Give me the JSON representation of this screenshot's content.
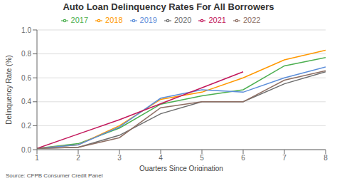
{
  "chart_data": {
    "type": "line",
    "title": "Auto Loan Delinquency Rates For All Borrowers",
    "x_label": "Quarters Since Origination",
    "y_label": "Delinquency Rate (%)",
    "annotations": [
      "Source: CFPB Consumer Credit Panel"
    ],
    "xlim": [
      1,
      8
    ],
    "xticks": [
      1,
      2,
      3,
      4,
      5,
      6,
      7,
      8
    ],
    "ylim": [
      0.0,
      1.0
    ],
    "yticks": [
      {
        "value": 0.0,
        "label": "0.0"
      },
      0.2,
      0.4,
      0.6,
      0.8,
      {
        "value": 1.0,
        "label": "1.0"
      }
    ],
    "grid": true,
    "legend": "top",
    "series": [
      {
        "name": "2017",
        "color": "#4caf50",
        "x": [
          1,
          2,
          3,
          4,
          5,
          6,
          7,
          8
        ],
        "values": [
          0.01,
          0.05,
          0.18,
          0.38,
          0.45,
          0.5,
          0.7,
          0.77
        ]
      },
      {
        "name": "2018",
        "color": "#ff9800",
        "x": [
          1,
          2,
          3,
          4,
          5,
          6,
          7,
          8
        ],
        "values": [
          0.01,
          0.04,
          0.2,
          0.42,
          0.48,
          0.6,
          0.75,
          0.83
        ]
      },
      {
        "name": "2019",
        "color": "#5b8dd9",
        "x": [
          1,
          2,
          3,
          4,
          5,
          6,
          7,
          8
        ],
        "values": [
          0.01,
          0.04,
          0.19,
          0.43,
          0.5,
          0.48,
          0.6,
          0.69
        ]
      },
      {
        "name": "2020",
        "color": "#6d6d6d",
        "x": [
          1,
          2,
          3,
          4,
          5,
          6,
          7,
          8
        ],
        "values": [
          0.01,
          0.02,
          0.12,
          0.3,
          0.4,
          0.4,
          0.55,
          0.65
        ]
      },
      {
        "name": "2021",
        "color": "#c2185b",
        "x": [
          1,
          2,
          3,
          6
        ],
        "values": [
          0.01,
          0.13,
          0.25,
          0.65
        ]
      },
      {
        "name": "2022",
        "color": "#8d6e63",
        "x": [
          1,
          2,
          3,
          4,
          5,
          6,
          7,
          8
        ],
        "values": [
          0.01,
          0.02,
          0.1,
          0.35,
          0.4,
          0.4,
          0.58,
          0.66
        ]
      }
    ]
  }
}
